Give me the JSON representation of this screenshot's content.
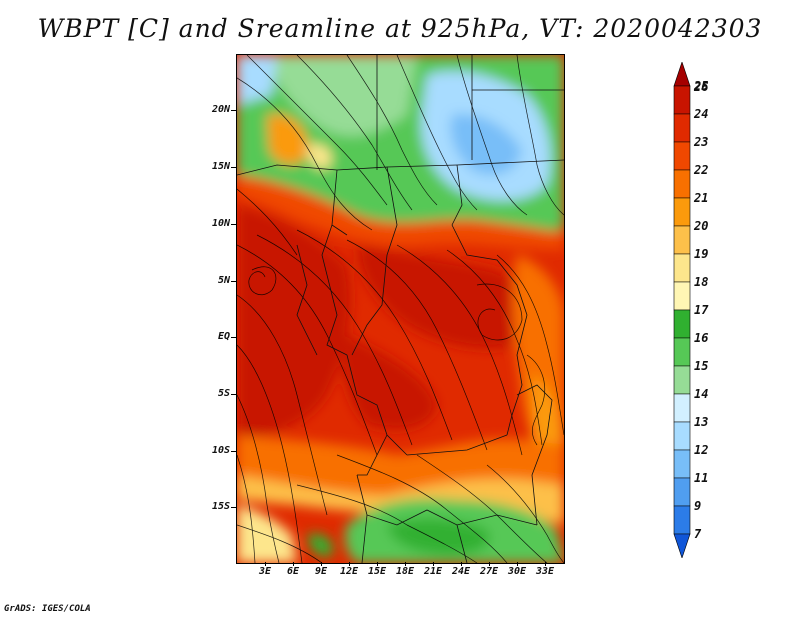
{
  "title": "WBPT [C] and Sreamline at 925hPa, VT: 2020042303",
  "footer": "GrADS: IGES/COLA",
  "y_axis_labels": [
    "20N",
    "15N",
    "10N",
    "5N",
    "EQ",
    "5S",
    "10S",
    "15S"
  ],
  "x_axis_labels": [
    "3E",
    "6E",
    "9E",
    "12E",
    "15E",
    "18E",
    "21E",
    "24E",
    "27E",
    "30E",
    "33E"
  ],
  "colorbar": {
    "labels": [
      "26",
      "25",
      "24",
      "23",
      "22",
      "21",
      "20",
      "19",
      "18",
      "17",
      "16",
      "15",
      "14",
      "13",
      "12",
      "11",
      "9",
      "7"
    ],
    "colors": [
      "#a50000",
      "#c81400",
      "#e02a00",
      "#f04800",
      "#f87000",
      "#fb9a0c",
      "#fdc04a",
      "#fde68c",
      "#fff6b4",
      "#30b030",
      "#56c856",
      "#96dc96",
      "#d2f0ff",
      "#a8dcff",
      "#78bef8",
      "#509ef0",
      "#2c7ce8",
      "#1056d8"
    ]
  }
}
